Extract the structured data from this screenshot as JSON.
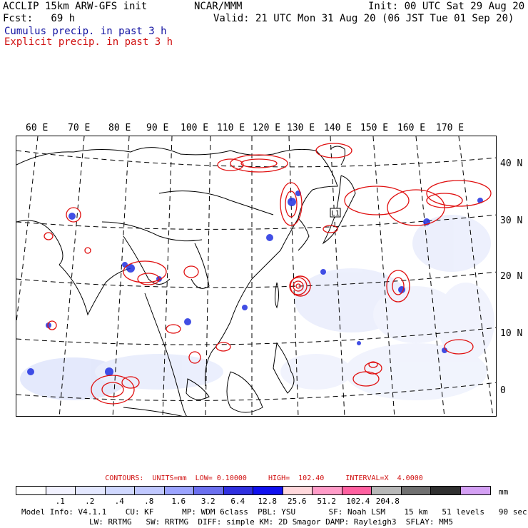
{
  "header": {
    "title_left": "ACCLIP 15km ARW-GFS init",
    "fcst": "Fcst:   69 h",
    "center": "NCAR/MMM",
    "init": "Init: 00 UTC Sat 29 Aug 20",
    "valid": "Valid: 21 UTC Mon 31 Aug 20 (06 JST Tue 01 Sep 20)",
    "cumulus": "Cumulus precip. in past 3 h",
    "explicit": "Explicit precip. in past 3 h"
  },
  "map": {
    "lon_labels": [
      "60 E",
      "70 E",
      "80 E",
      "90 E",
      "100 E",
      "110 E",
      "120 E",
      "130 E",
      "140 E",
      "150 E",
      "160 E",
      "170 E"
    ],
    "lat_labels": [
      "40 N",
      "30 N",
      "20 N",
      "10 N",
      "0"
    ],
    "box_label": "L1",
    "colors": {
      "coast": "#000000",
      "grid": "#000000",
      "cumulus": "#2030e0",
      "cumulus_light": "#b8c4f4",
      "explicit": "#e01010"
    }
  },
  "contours": {
    "text": "CONTOURS:  UNITS=mm  LOW= 0.10000     HIGH=  102.40     INTERVAL=X  4.0000"
  },
  "colorbar": {
    "colors": [
      "#ffffff",
      "#f2f2ff",
      "#e4e8ff",
      "#d0d8ff",
      "#c0c8ff",
      "#9ca4ff",
      "#6c70f0",
      "#3030e0",
      "#1010f0",
      "#ffd8dc",
      "#ff9cc8",
      "#ff60a0",
      "#b8b8b8",
      "#707070",
      "#303030",
      "#d4a0f4"
    ],
    "ticks": [
      ".1",
      ".2",
      ".4",
      ".8",
      "1.6",
      "3.2",
      "6.4",
      "12.8",
      "25.6",
      "51.2",
      "102.4",
      "204.8"
    ],
    "units": "mm"
  },
  "footer": {
    "line1": "Model Info: V4.1.1    CU: KF      MP: WDM 6class  PBL: YSU       SF: Noah LSM    15 km   51 levels   90 sec",
    "line2": "LW: RRTMG   SW: RRTMG  DIFF: simple KM: 2D Smagor DAMP: Rayleigh3  SFLAY: MM5"
  }
}
